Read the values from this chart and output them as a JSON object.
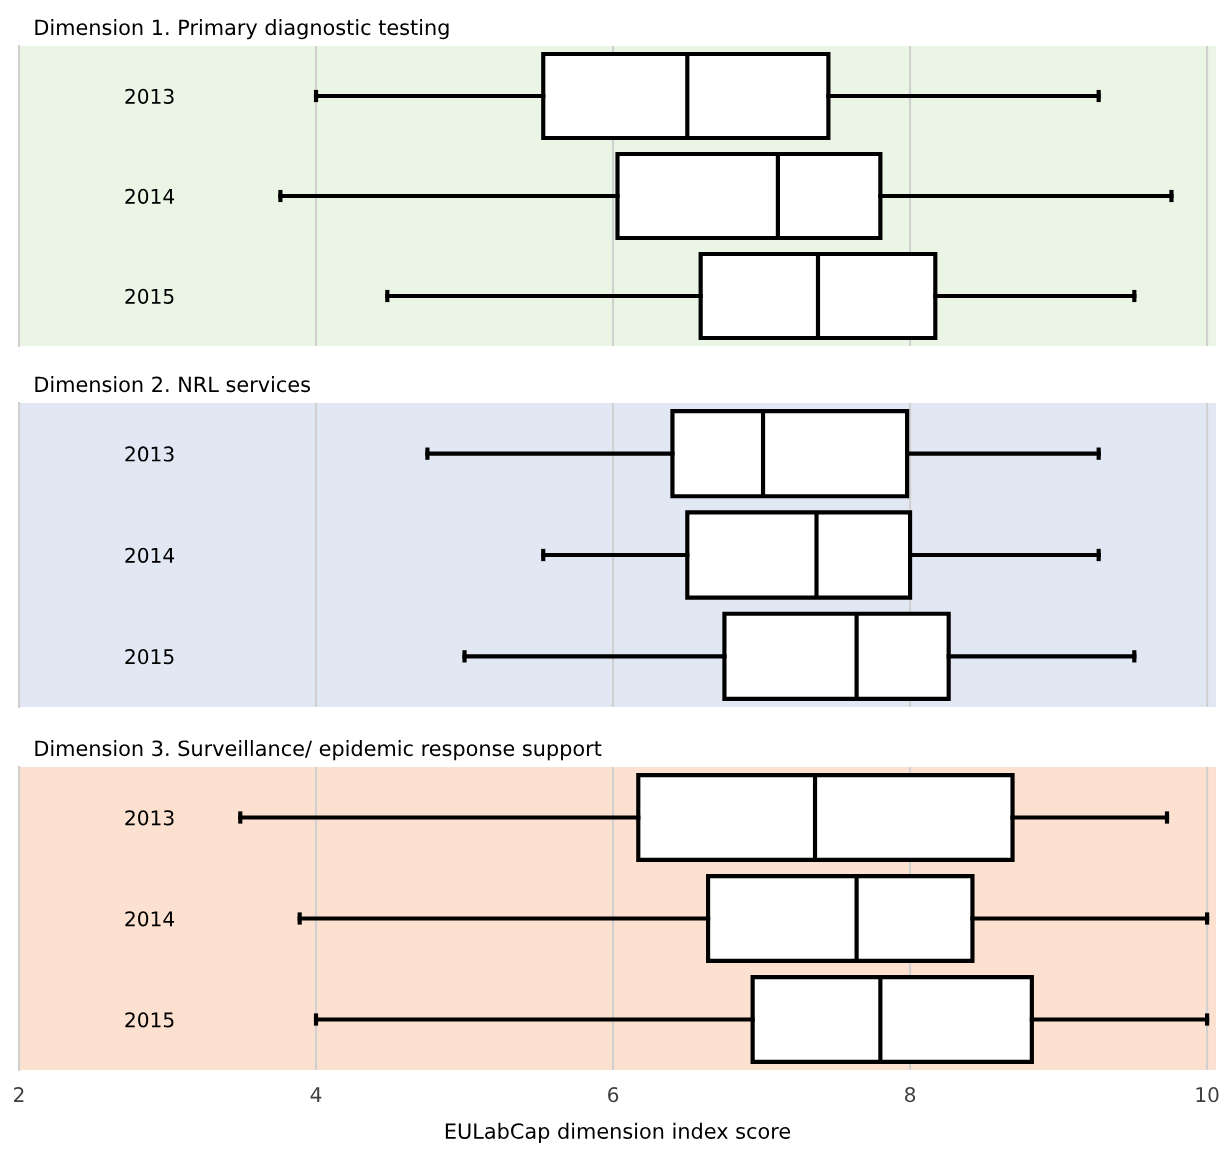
{
  "chart_data": [
    {
      "type": "box",
      "title": "Dimension 1. Primary diagnostic testing",
      "orientation": "horizontal",
      "categories": [
        "2013",
        "2014",
        "2015"
      ],
      "boxes": [
        {
          "low": 4.0,
          "q1": 5.53,
          "median": 6.5,
          "q3": 7.45,
          "high": 9.27
        },
        {
          "low": 3.76,
          "q1": 6.03,
          "median": 7.11,
          "q3": 7.8,
          "high": 9.76
        },
        {
          "low": 4.48,
          "q1": 6.59,
          "median": 7.38,
          "q3": 8.17,
          "high": 9.51
        }
      ],
      "xlim": [
        2,
        10.06
      ],
      "xticks": [
        2,
        4,
        6,
        8,
        10
      ],
      "grid": "x",
      "tick_labels": "y",
      "bands": [
        {
          "axis": "x",
          "from": 2,
          "to": 10.06,
          "color": "#ebf5e6"
        }
      ]
    },
    {
      "type": "box",
      "title": "Dimension 2. NRL services",
      "orientation": "horizontal",
      "categories": [
        "2013",
        "2014",
        "2015"
      ],
      "boxes": [
        {
          "low": 4.75,
          "q1": 6.4,
          "median": 7.01,
          "q3": 7.98,
          "high": 9.27
        },
        {
          "low": 5.53,
          "q1": 6.5,
          "median": 7.37,
          "q3": 8.0,
          "high": 9.27
        },
        {
          "low": 5.0,
          "q1": 6.75,
          "median": 7.64,
          "q3": 8.26,
          "high": 9.51
        }
      ],
      "xlim": [
        2,
        10.06
      ],
      "xticks": [
        2,
        4,
        6,
        8,
        10
      ],
      "grid": "x",
      "tick_labels": "y",
      "bands": [
        {
          "axis": "x",
          "from": 2,
          "to": 10.06,
          "color": "#e1e7f3"
        }
      ]
    },
    {
      "type": "box",
      "title": "Dimension 3. Surveillance/ epidemic response support",
      "orientation": "horizontal",
      "categories": [
        "2013",
        "2014",
        "2015"
      ],
      "boxes": [
        {
          "low": 3.49,
          "q1": 6.17,
          "median": 7.36,
          "q3": 8.69,
          "high": 9.73
        },
        {
          "low": 3.89,
          "q1": 6.64,
          "median": 7.64,
          "q3": 8.42,
          "high": 10.0
        },
        {
          "low": 4.0,
          "q1": 6.94,
          "median": 7.8,
          "q3": 8.82,
          "high": 10.0
        }
      ],
      "xlim": [
        2,
        10.06
      ],
      "xticks": [
        2,
        4,
        6,
        8,
        10
      ],
      "grid": "x",
      "xlabel": "EULabCap dimension index score",
      "bands": [
        {
          "axis": "x",
          "from": 2,
          "to": 10.06,
          "color": "#fde1d0"
        }
      ]
    }
  ]
}
